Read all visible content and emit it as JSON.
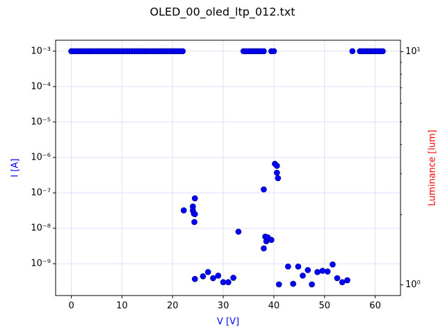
{
  "chart_data": {
    "type": "scatter",
    "title": "OLED_00_oled_ltp_012.txt",
    "xlabel": "V [V]",
    "ylabel": "I [A]",
    "y2label": "Luminance [lum]",
    "xlabel_color": "#0000ff",
    "ylabel_color": "#0000ff",
    "y2label_color": "#ff0000",
    "log_y": true,
    "log_y2": true,
    "grid": true,
    "xlim": [
      -3.1,
      65.0
    ],
    "xticks": [
      0,
      10,
      20,
      30,
      40,
      50,
      60
    ],
    "ylim": [
      1.26e-10,
      0.00204
    ],
    "yticks": [
      {
        "value": 1e-09,
        "label": "10⁻⁹"
      },
      {
        "value": 1e-08,
        "label": "10⁻⁸"
      },
      {
        "value": 1e-07,
        "label": "10⁻⁷"
      },
      {
        "value": 1e-06,
        "label": "10⁻⁶"
      },
      {
        "value": 1e-05,
        "label": "10⁻⁵"
      },
      {
        "value": 0.0001,
        "label": "10⁻⁴"
      },
      {
        "value": 0.001,
        "label": "10⁻³"
      }
    ],
    "y2lim": [
      0.9,
      11.2
    ],
    "y2ticks": [
      {
        "value": 1,
        "label": "10⁰"
      },
      {
        "value": 10,
        "label": "10¹"
      }
    ],
    "series": [
      {
        "color": "#0000ff",
        "x": [
          0,
          0.5,
          1,
          1.5,
          2,
          2.5,
          3,
          3.5,
          4,
          4.5,
          5,
          5.5,
          6,
          6.5,
          7,
          7.5,
          8,
          8.5,
          9,
          9.5,
          10,
          10.5,
          11,
          11.5,
          12,
          12.5,
          13,
          13.5,
          14,
          14.5,
          15,
          15.5,
          16,
          16.5,
          17,
          17.5,
          18,
          18.5,
          19,
          19.5,
          20,
          20.5,
          21,
          21.5,
          22,
          34,
          34.5,
          35,
          35.5,
          36,
          36.5,
          37,
          37.5,
          38,
          39.5,
          40,
          55.5,
          57,
          57.5,
          58,
          58.5,
          59,
          59.5,
          60,
          60.5,
          61,
          61.5,
          22.2,
          24,
          24,
          24.2,
          24.4,
          24.4,
          24.3,
          24.4,
          26,
          27,
          28,
          29,
          30,
          31,
          32,
          33,
          38,
          38,
          38.3,
          38.5,
          39,
          39.5,
          38.8,
          40.2,
          40.6,
          40.6,
          40.8,
          41,
          42.8,
          43.8,
          44.8,
          45.7,
          46.7,
          47.5,
          48.6,
          49.6,
          50.6,
          51.6,
          52.5,
          53.5,
          54.5
        ],
        "values": [
          0.001,
          0.001,
          0.001,
          0.001,
          0.001,
          0.001,
          0.001,
          0.001,
          0.001,
          0.001,
          0.001,
          0.001,
          0.001,
          0.001,
          0.001,
          0.001,
          0.001,
          0.001,
          0.001,
          0.001,
          0.001,
          0.001,
          0.001,
          0.001,
          0.001,
          0.001,
          0.001,
          0.001,
          0.001,
          0.001,
          0.001,
          0.001,
          0.001,
          0.001,
          0.001,
          0.001,
          0.001,
          0.001,
          0.001,
          0.001,
          0.001,
          0.001,
          0.001,
          0.001,
          0.001,
          0.001,
          0.001,
          0.001,
          0.001,
          0.001,
          0.001,
          0.001,
          0.001,
          0.001,
          0.001,
          0.001,
          0.001,
          0.001,
          0.001,
          0.001,
          0.001,
          0.001,
          0.001,
          0.001,
          0.001,
          0.001,
          0.001,
          3.2e-08,
          4.1e-08,
          3.2e-08,
          2.6e-08,
          7e-08,
          2.5e-08,
          1.5e-08,
          3.7e-10,
          4.4e-10,
          5.8e-10,
          3.9e-10,
          4.6e-10,
          3e-10,
          3e-10,
          4e-10,
          8e-09,
          1.25e-07,
          2.7e-09,
          5.8e-09,
          4.3e-09,
          4.9e-09,
          4.7e-09,
          5.5e-09,
          6.6e-07,
          5.8e-07,
          3.7e-07,
          2.6e-07,
          2.6e-10,
          8.3e-10,
          2.7e-10,
          8.3e-10,
          4.6e-10,
          6.6e-10,
          2.6e-10,
          5.8e-10,
          6.3e-10,
          6e-10,
          9.5e-10,
          3.9e-10,
          3e-10,
          3.4e-10
        ]
      }
    ]
  }
}
